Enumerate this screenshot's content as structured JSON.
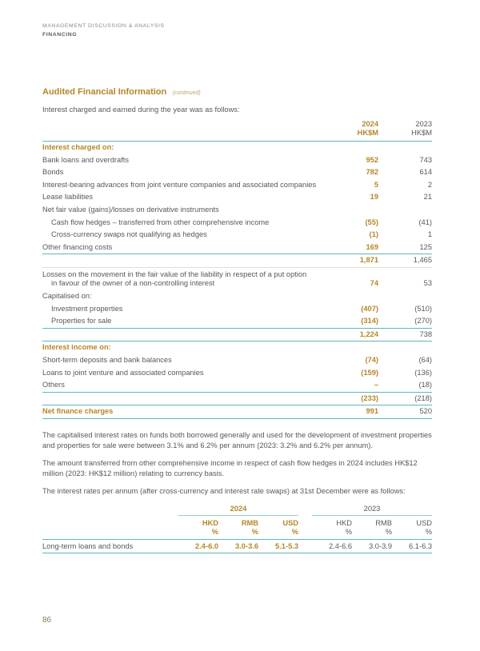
{
  "header": {
    "eyebrow": "MANAGEMENT DISCUSSION & ANALYSIS",
    "section": "FINANCING"
  },
  "title": {
    "main": "Audited Financial Information",
    "continued": "(continued)"
  },
  "intro": "Interest charged and earned during the year was as follows:",
  "colors": {
    "accent_gold": "#b5862b",
    "rule_teal": "#5cb8bb",
    "body_text": "#57585a"
  },
  "table1": {
    "columns": [
      {
        "year": "2024",
        "unit": "HK$M"
      },
      {
        "year": "2023",
        "unit": "HK$M"
      }
    ],
    "rows": [
      {
        "label": "Interest charged on:",
        "v2024": "",
        "v2023": ""
      },
      {
        "label": "Bank loans and overdrafts",
        "v2024": "952",
        "v2023": "743"
      },
      {
        "label": "Bonds",
        "v2024": "782",
        "v2023": "614"
      },
      {
        "label": "Interest-bearing advances from joint venture companies and associated companies",
        "v2024": "5",
        "v2023": "2"
      },
      {
        "label": "Lease liabilities",
        "v2024": "19",
        "v2023": "21"
      },
      {
        "label": "Net fair value (gains)/losses on derivative instruments",
        "v2024": "",
        "v2023": ""
      },
      {
        "label": "Cash flow hedges – transferred from other comprehensive income",
        "v2024": "(55)",
        "v2023": "(41)"
      },
      {
        "label": "Cross-currency swaps not qualifying as hedges",
        "v2024": "(1)",
        "v2023": "1"
      },
      {
        "label": "Other financing costs",
        "v2024": "169",
        "v2023": "125"
      },
      {
        "label": "",
        "v2024": "1,871",
        "v2023": "1,465"
      },
      {
        "label": "Losses on the movement in the fair value of the liability in respect of a put option",
        "label2": "in favour of the owner of a non-controlling interest",
        "v2024": "74",
        "v2023": "53"
      },
      {
        "label": "Capitalised on:",
        "v2024": "",
        "v2023": ""
      },
      {
        "label": "Investment properties",
        "v2024": "(407)",
        "v2023": "(510)"
      },
      {
        "label": "Properties for sale",
        "v2024": "(314)",
        "v2023": "(270)"
      },
      {
        "label": "",
        "v2024": "1,224",
        "v2023": "738"
      },
      {
        "label": "Interest income on:",
        "v2024": "",
        "v2023": ""
      },
      {
        "label": "Short-term deposits and bank balances",
        "v2024": "(74)",
        "v2023": "(64)"
      },
      {
        "label": "Loans to joint venture and associated companies",
        "v2024": "(159)",
        "v2023": "(136)"
      },
      {
        "label": "Others",
        "v2024": "–",
        "v2023": "(18)"
      },
      {
        "label": "",
        "v2024": "(233)",
        "v2023": "(218)"
      },
      {
        "label": "Net finance charges",
        "v2024": "991",
        "v2023": "520"
      }
    ]
  },
  "paragraphs": [
    "The capitalised interest rates on funds both borrowed generally and used for the development of investment properties and properties for sale were between 3.1% and 6.2% per annum (2023: 3.2% and 6.2% per annum).",
    "The amount transferred from other comprehensive income in respect of cash flow hedges in 2024 includes HK$12 million (2023: HK$12 million) relating to currency basis.",
    "The interest rates per annum (after cross-currency and interest rate swaps) at 31st December were as follows:"
  ],
  "table2": {
    "year_groups": [
      {
        "year": "2024"
      },
      {
        "year": "2023"
      }
    ],
    "subcols": [
      {
        "cur": "HKD",
        "unit": "%"
      },
      {
        "cur": "RMB",
        "unit": "%"
      },
      {
        "cur": "USD",
        "unit": "%"
      },
      {
        "cur": "HKD",
        "unit": "%"
      },
      {
        "cur": "RMB",
        "unit": "%"
      },
      {
        "cur": "USD",
        "unit": "%"
      }
    ],
    "row": {
      "label": "Long-term loans and bonds",
      "values": [
        "2.4-6.0",
        "3.0-3.6",
        "5.1-5.3",
        "2.4-6.6",
        "3.0-3.9",
        "6.1-6.3"
      ]
    }
  },
  "footer": {
    "page_number": "86"
  }
}
